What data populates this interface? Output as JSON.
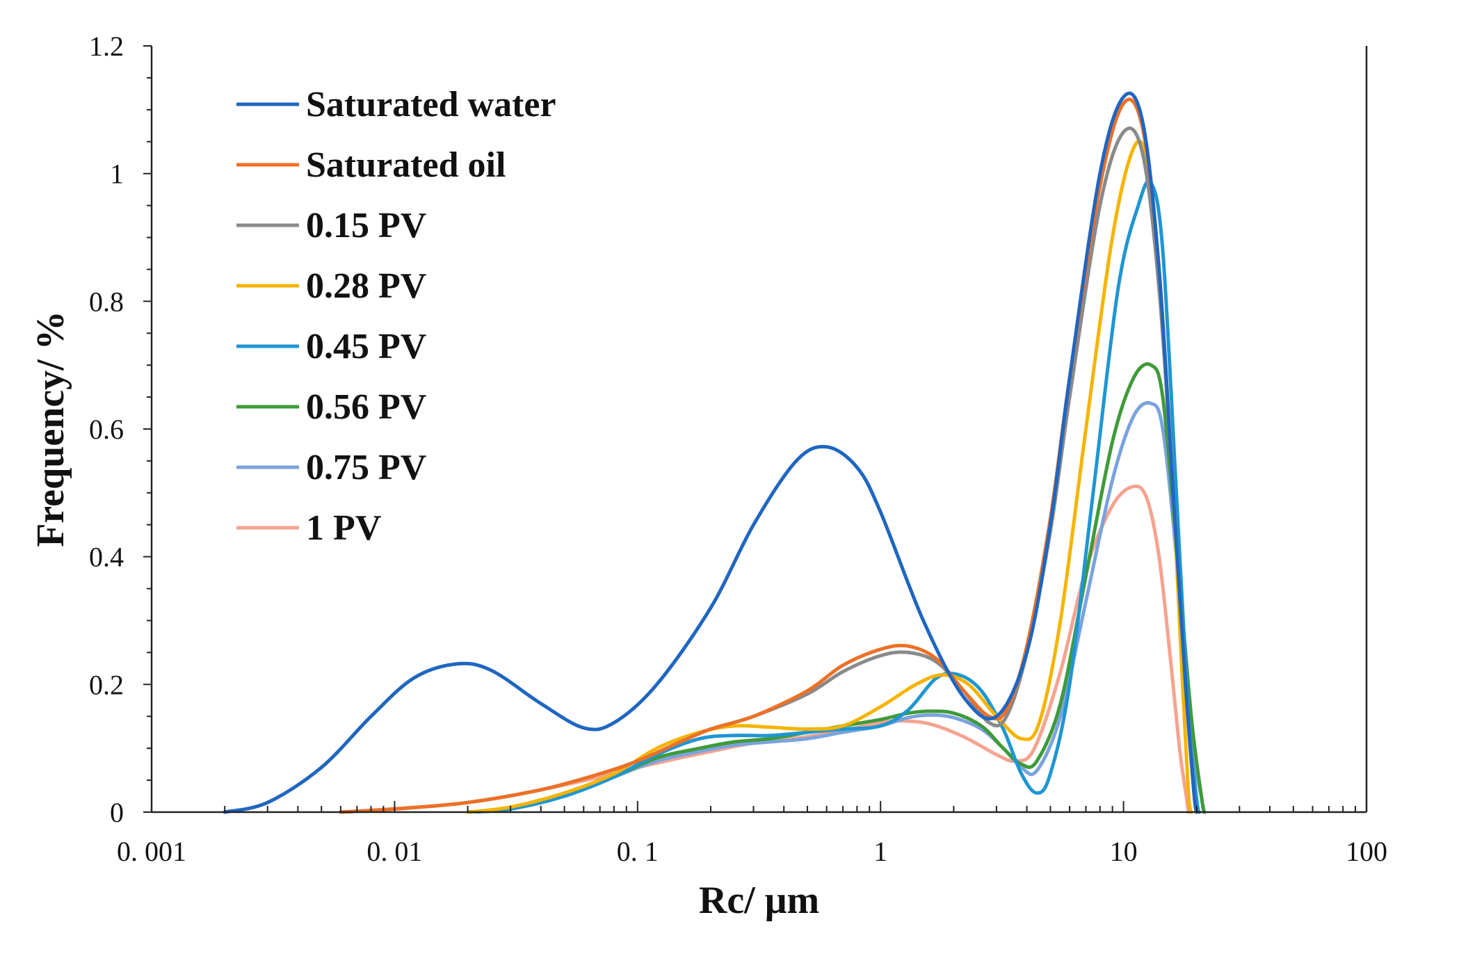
{
  "chart_data": {
    "type": "line",
    "xlabel": "Rc/ μm",
    "ylabel": "Frequency/ %",
    "xscale": "log",
    "xlim": [
      0.001,
      100
    ],
    "ylim": [
      0,
      1.2
    ],
    "x_ticks": [
      0.001,
      0.01,
      0.1,
      1,
      10,
      100
    ],
    "x_tick_labels": [
      "0. 001",
      "0. 01",
      "0. 1",
      "1",
      "10",
      "100"
    ],
    "y_ticks": [
      0,
      0.2,
      0.4,
      0.6,
      0.8,
      1,
      1.2
    ],
    "y_tick_labels": [
      "0",
      "0.2",
      "0.4",
      "0.6",
      "0.8",
      "1",
      "1.2"
    ],
    "legend_position": "top-left",
    "series": [
      {
        "name": "Saturated water",
        "color": "#1f66c0",
        "points": [
          [
            0.002,
            0
          ],
          [
            0.003,
            0.015
          ],
          [
            0.005,
            0.07
          ],
          [
            0.008,
            0.15
          ],
          [
            0.012,
            0.21
          ],
          [
            0.018,
            0.232
          ],
          [
            0.025,
            0.222
          ],
          [
            0.04,
            0.17
          ],
          [
            0.06,
            0.132
          ],
          [
            0.08,
            0.14
          ],
          [
            0.12,
            0.2
          ],
          [
            0.2,
            0.32
          ],
          [
            0.3,
            0.45
          ],
          [
            0.45,
            0.55
          ],
          [
            0.6,
            0.572
          ],
          [
            0.8,
            0.54
          ],
          [
            1.0,
            0.47
          ],
          [
            1.5,
            0.3
          ],
          [
            2.2,
            0.18
          ],
          [
            3.0,
            0.15
          ],
          [
            4.0,
            0.25
          ],
          [
            5.0,
            0.45
          ],
          [
            6.0,
            0.68
          ],
          [
            8.0,
            1.0
          ],
          [
            10.0,
            1.12
          ],
          [
            12.0,
            1.08
          ],
          [
            14.0,
            0.85
          ],
          [
            16.0,
            0.5
          ],
          [
            18.0,
            0.2
          ],
          [
            19.5,
            0.03
          ],
          [
            20.0,
            0
          ]
        ]
      },
      {
        "name": "Saturated oil",
        "color": "#ed7026",
        "points": [
          [
            0.006,
            0
          ],
          [
            0.01,
            0.005
          ],
          [
            0.02,
            0.015
          ],
          [
            0.04,
            0.035
          ],
          [
            0.07,
            0.06
          ],
          [
            0.1,
            0.08
          ],
          [
            0.15,
            0.11
          ],
          [
            0.2,
            0.13
          ],
          [
            0.3,
            0.15
          ],
          [
            0.5,
            0.19
          ],
          [
            0.7,
            0.23
          ],
          [
            1.0,
            0.255
          ],
          [
            1.3,
            0.26
          ],
          [
            1.7,
            0.24
          ],
          [
            2.2,
            0.19
          ],
          [
            2.8,
            0.15
          ],
          [
            3.3,
            0.16
          ],
          [
            4.0,
            0.26
          ],
          [
            5.0,
            0.46
          ],
          [
            6.0,
            0.68
          ],
          [
            8.0,
            0.98
          ],
          [
            10.0,
            1.11
          ],
          [
            12.0,
            1.07
          ],
          [
            14.0,
            0.85
          ],
          [
            16.0,
            0.5
          ],
          [
            18.0,
            0.2
          ],
          [
            19.5,
            0.03
          ],
          [
            20.0,
            0
          ]
        ]
      },
      {
        "name": "0.15 PV",
        "color": "#8a8a8a",
        "points": [
          [
            0.006,
            0
          ],
          [
            0.01,
            0.005
          ],
          [
            0.02,
            0.015
          ],
          [
            0.04,
            0.035
          ],
          [
            0.07,
            0.06
          ],
          [
            0.1,
            0.08
          ],
          [
            0.15,
            0.11
          ],
          [
            0.2,
            0.13
          ],
          [
            0.3,
            0.15
          ],
          [
            0.5,
            0.185
          ],
          [
            0.7,
            0.22
          ],
          [
            1.0,
            0.245
          ],
          [
            1.3,
            0.25
          ],
          [
            1.7,
            0.235
          ],
          [
            2.2,
            0.19
          ],
          [
            2.8,
            0.14
          ],
          [
            3.3,
            0.15
          ],
          [
            4.0,
            0.25
          ],
          [
            5.0,
            0.44
          ],
          [
            6.0,
            0.65
          ],
          [
            8.0,
            0.95
          ],
          [
            10.0,
            1.065
          ],
          [
            12.0,
            1.03
          ],
          [
            14.0,
            0.82
          ],
          [
            16.0,
            0.5
          ],
          [
            18.0,
            0.2
          ],
          [
            19.5,
            0.03
          ],
          [
            20.0,
            0
          ]
        ]
      },
      {
        "name": "0.28 PV",
        "color": "#f5b400",
        "points": [
          [
            0.02,
            0
          ],
          [
            0.03,
            0.008
          ],
          [
            0.05,
            0.03
          ],
          [
            0.08,
            0.06
          ],
          [
            0.12,
            0.1
          ],
          [
            0.18,
            0.125
          ],
          [
            0.25,
            0.135
          ],
          [
            0.35,
            0.133
          ],
          [
            0.5,
            0.13
          ],
          [
            0.7,
            0.135
          ],
          [
            1.0,
            0.165
          ],
          [
            1.4,
            0.2
          ],
          [
            1.8,
            0.215
          ],
          [
            2.3,
            0.2
          ],
          [
            3.0,
            0.15
          ],
          [
            3.8,
            0.115
          ],
          [
            4.5,
            0.14
          ],
          [
            5.5,
            0.3
          ],
          [
            7.0,
            0.6
          ],
          [
            9.0,
            0.9
          ],
          [
            11.0,
            1.04
          ],
          [
            12.5,
            1.02
          ],
          [
            14.0,
            0.85
          ],
          [
            16.0,
            0.5
          ],
          [
            17.5,
            0.2
          ],
          [
            18.5,
            0.03
          ],
          [
            19.0,
            0
          ]
        ]
      },
      {
        "name": "0.45 PV",
        "color": "#1f96d2",
        "points": [
          [
            0.02,
            0
          ],
          [
            0.03,
            0.005
          ],
          [
            0.05,
            0.025
          ],
          [
            0.08,
            0.055
          ],
          [
            0.12,
            0.09
          ],
          [
            0.18,
            0.115
          ],
          [
            0.25,
            0.12
          ],
          [
            0.35,
            0.12
          ],
          [
            0.5,
            0.125
          ],
          [
            0.7,
            0.13
          ],
          [
            1.0,
            0.135
          ],
          [
            1.3,
            0.16
          ],
          [
            1.7,
            0.21
          ],
          [
            2.1,
            0.215
          ],
          [
            2.6,
            0.19
          ],
          [
            3.2,
            0.13
          ],
          [
            3.8,
            0.06
          ],
          [
            4.4,
            0.03
          ],
          [
            5.0,
            0.06
          ],
          [
            6.0,
            0.2
          ],
          [
            7.5,
            0.5
          ],
          [
            9.5,
            0.82
          ],
          [
            11.5,
            0.95
          ],
          [
            13.0,
            0.985
          ],
          [
            14.5,
            0.88
          ],
          [
            16.5,
            0.5
          ],
          [
            18.5,
            0.15
          ],
          [
            20.0,
            0.02
          ],
          [
            20.5,
            0
          ]
        ]
      },
      {
        "name": "0.56 PV",
        "color": "#3f9a3a",
        "points": [
          [
            0.02,
            0
          ],
          [
            0.03,
            0.005
          ],
          [
            0.05,
            0.025
          ],
          [
            0.08,
            0.055
          ],
          [
            0.12,
            0.085
          ],
          [
            0.18,
            0.1
          ],
          [
            0.25,
            0.11
          ],
          [
            0.35,
            0.115
          ],
          [
            0.5,
            0.125
          ],
          [
            0.7,
            0.135
          ],
          [
            1.0,
            0.145
          ],
          [
            1.3,
            0.155
          ],
          [
            1.6,
            0.158
          ],
          [
            2.0,
            0.155
          ],
          [
            2.6,
            0.135
          ],
          [
            3.2,
            0.1
          ],
          [
            3.8,
            0.075
          ],
          [
            4.4,
            0.08
          ],
          [
            5.5,
            0.17
          ],
          [
            7.0,
            0.37
          ],
          [
            9.0,
            0.58
          ],
          [
            11.0,
            0.68
          ],
          [
            13.0,
            0.7
          ],
          [
            14.5,
            0.65
          ],
          [
            16.5,
            0.42
          ],
          [
            19.0,
            0.15
          ],
          [
            21.0,
            0.02
          ],
          [
            21.5,
            0
          ]
        ]
      },
      {
        "name": "0.75 PV",
        "color": "#7aa3dd",
        "points": [
          [
            0.02,
            0
          ],
          [
            0.03,
            0.005
          ],
          [
            0.05,
            0.025
          ],
          [
            0.08,
            0.055
          ],
          [
            0.12,
            0.08
          ],
          [
            0.18,
            0.095
          ],
          [
            0.25,
            0.105
          ],
          [
            0.35,
            0.11
          ],
          [
            0.5,
            0.115
          ],
          [
            0.7,
            0.125
          ],
          [
            1.0,
            0.135
          ],
          [
            1.3,
            0.148
          ],
          [
            1.6,
            0.152
          ],
          [
            2.0,
            0.148
          ],
          [
            2.6,
            0.13
          ],
          [
            3.2,
            0.1
          ],
          [
            3.8,
            0.07
          ],
          [
            4.4,
            0.065
          ],
          [
            5.5,
            0.15
          ],
          [
            7.0,
            0.33
          ],
          [
            9.0,
            0.52
          ],
          [
            11.0,
            0.62
          ],
          [
            13.0,
            0.64
          ],
          [
            14.5,
            0.6
          ],
          [
            16.5,
            0.4
          ],
          [
            19.0,
            0.12
          ],
          [
            21.0,
            0.02
          ],
          [
            21.5,
            0
          ]
        ]
      },
      {
        "name": "1 PV",
        "color": "#f5a390",
        "points": [
          [
            0.006,
            0
          ],
          [
            0.01,
            0.005
          ],
          [
            0.02,
            0.015
          ],
          [
            0.04,
            0.035
          ],
          [
            0.07,
            0.055
          ],
          [
            0.1,
            0.07
          ],
          [
            0.15,
            0.085
          ],
          [
            0.2,
            0.095
          ],
          [
            0.3,
            0.108
          ],
          [
            0.5,
            0.118
          ],
          [
            0.7,
            0.128
          ],
          [
            1.0,
            0.14
          ],
          [
            1.2,
            0.143
          ],
          [
            1.6,
            0.138
          ],
          [
            2.2,
            0.118
          ],
          [
            3.0,
            0.09
          ],
          [
            3.6,
            0.08
          ],
          [
            4.3,
            0.1
          ],
          [
            5.5,
            0.22
          ],
          [
            7.0,
            0.38
          ],
          [
            9.0,
            0.48
          ],
          [
            11.0,
            0.51
          ],
          [
            12.5,
            0.49
          ],
          [
            14.0,
            0.4
          ],
          [
            15.5,
            0.25
          ],
          [
            17.0,
            0.1
          ],
          [
            18.2,
            0.02
          ],
          [
            18.5,
            0
          ]
        ]
      }
    ]
  }
}
